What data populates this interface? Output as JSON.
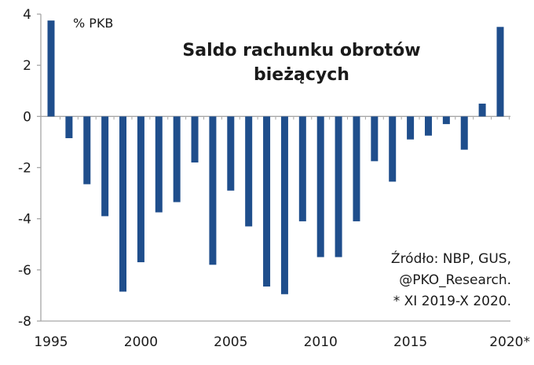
{
  "chart_data": {
    "type": "bar",
    "title_lines": [
      "Saldo rachunku obrotów",
      "bieżących"
    ],
    "unit_label": "% PKB",
    "xlabel": "",
    "ylabel": "",
    "categories": [
      "1995",
      "1996",
      "1997",
      "1998",
      "1999",
      "2000",
      "2001",
      "2002",
      "2003",
      "2004",
      "2005",
      "2006",
      "2007",
      "2008",
      "2009",
      "2010",
      "2011",
      "2012",
      "2013",
      "2014",
      "2015",
      "2016",
      "2017",
      "2018",
      "2019",
      "2020*"
    ],
    "x_tick_labels": [
      "1995",
      "2000",
      "2005",
      "2010",
      "2015",
      "2020*"
    ],
    "y_tick_labels": [
      "4",
      "2",
      "0",
      "-2",
      "-4",
      "-6",
      "-8"
    ],
    "y_ticks": [
      4,
      2,
      0,
      -2,
      -4,
      -6,
      -8
    ],
    "ylim": [
      -8,
      4
    ],
    "series": [
      {
        "values": [
          3.75,
          -0.85,
          -2.65,
          -3.9,
          -6.85,
          -5.7,
          -3.75,
          -3.35,
          -1.8,
          -5.8,
          -2.9,
          -4.3,
          -6.65,
          -6.95,
          -4.1,
          -5.5,
          -5.5,
          -4.1,
          -1.75,
          -2.55,
          -0.9,
          -0.75,
          -0.3,
          -1.3,
          0.5,
          3.5
        ]
      }
    ],
    "bar_color": "#1f4e8c",
    "grid": false,
    "source_lines": [
      "Źródło: NBP, GUS,",
      "@PKO_Research.",
      "* XI 2019-X 2020."
    ]
  }
}
